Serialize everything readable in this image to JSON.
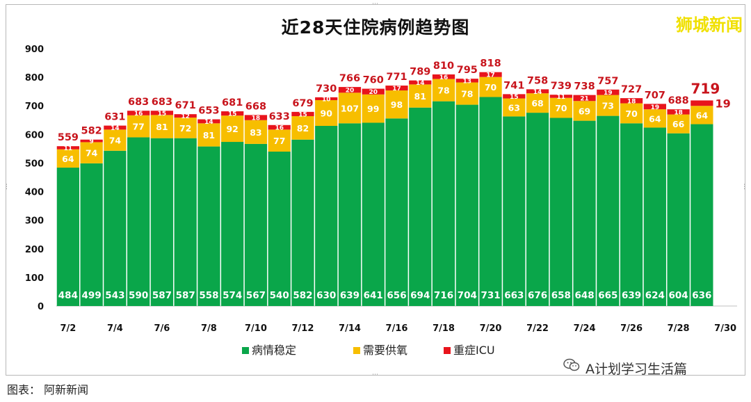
{
  "chart_data": {
    "type": "bar",
    "stacked": true,
    "title": "近28天住院病例趋势图",
    "categories": [
      "7/2",
      "7/3",
      "7/4",
      "7/5",
      "7/6",
      "7/7",
      "7/8",
      "7/9",
      "7/10",
      "7/11",
      "7/12",
      "7/13",
      "7/14",
      "7/15",
      "7/16",
      "7/17",
      "7/18",
      "7/19",
      "7/20",
      "7/21",
      "7/22",
      "7/23",
      "7/24",
      "7/25",
      "7/26",
      "7/27",
      "7/28",
      "7/29",
      "7/30"
    ],
    "x_tick_labels": [
      "7/2",
      "7/4",
      "7/6",
      "7/8",
      "7/10",
      "7/12",
      "7/14",
      "7/16",
      "7/18",
      "7/20",
      "7/22",
      "7/24",
      "7/26",
      "7/28",
      "7/30"
    ],
    "series": [
      {
        "name": "病情稳定",
        "color": "#0aa64a",
        "values": [
          484,
          499,
          543,
          590,
          587,
          587,
          558,
          574,
          567,
          540,
          582,
          630,
          639,
          641,
          656,
          694,
          716,
          704,
          731,
          663,
          676,
          658,
          648,
          665,
          639,
          624,
          604,
          636,
          null
        ]
      },
      {
        "name": "需要供氧",
        "color": "#f7be00",
        "values": [
          64,
          74,
          74,
          77,
          81,
          72,
          81,
          92,
          83,
          77,
          82,
          90,
          107,
          99,
          98,
          81,
          78,
          78,
          70,
          63,
          68,
          70,
          69,
          73,
          70,
          64,
          66,
          64,
          null
        ]
      },
      {
        "name": "重症ICU",
        "color": "#e8141c",
        "values": [
          11,
          9,
          14,
          16,
          15,
          12,
          14,
          15,
          18,
          16,
          15,
          10,
          20,
          20,
          17,
          14,
          16,
          13,
          17,
          15,
          14,
          11,
          21,
          19,
          18,
          19,
          18,
          19,
          null
        ]
      }
    ],
    "totals": [
      559,
      582,
      631,
      683,
      683,
      671,
      653,
      681,
      668,
      633,
      679,
      730,
      766,
      760,
      771,
      789,
      810,
      795,
      818,
      741,
      758,
      739,
      738,
      757,
      727,
      707,
      688,
      719,
      null
    ],
    "highlight_total_index": 27,
    "ylim": [
      0,
      900
    ],
    "yticks": [
      0,
      100,
      200,
      300,
      400,
      500,
      600,
      700,
      800,
      900
    ],
    "grid": false,
    "legend_position": "bottom"
  },
  "brand": "狮城新闻",
  "footer": {
    "left": "图表：    阿新新闻",
    "right": "A计划学习生活篇"
  },
  "colors": {
    "stable": "#0aa64a",
    "oxygen": "#f7be00",
    "icu": "#e8141c",
    "total_label": "#c8141c"
  }
}
